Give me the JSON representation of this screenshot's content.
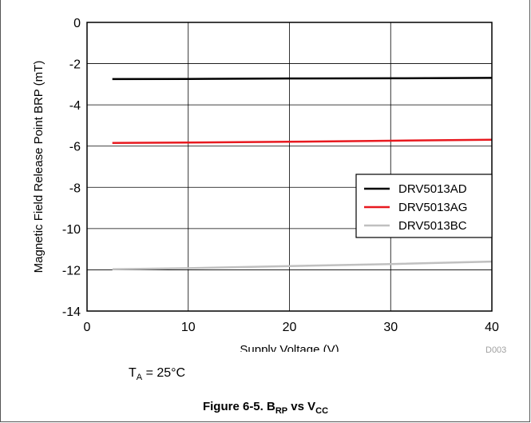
{
  "chart_data": {
    "type": "line",
    "xlabel": "Supply Voltage (V)",
    "ylabel": "Magnetic Field Release Point BRP (mT)",
    "xlim": [
      0,
      40
    ],
    "ylim": [
      -14,
      0
    ],
    "x_ticks": [
      "0",
      "10",
      "20",
      "30",
      "40"
    ],
    "y_ticks": [
      "0",
      "-2",
      "-4",
      "-6",
      "-8",
      "-10",
      "-12",
      "-14"
    ],
    "grid": true,
    "legend_position": "right",
    "series": [
      {
        "name": "DRV5013AD",
        "color": "#000000",
        "x": [
          2.5,
          10,
          20,
          30,
          40
        ],
        "y": [
          -2.75,
          -2.74,
          -2.72,
          -2.71,
          -2.69
        ]
      },
      {
        "name": "DRV5013AG",
        "color": "#e8191f",
        "x": [
          2.5,
          10,
          20,
          30,
          40
        ],
        "y": [
          -5.85,
          -5.83,
          -5.79,
          -5.74,
          -5.69
        ]
      },
      {
        "name": "DRV5013BC",
        "color": "#c0c0c0",
        "x": [
          2.5,
          10,
          20,
          30,
          40
        ],
        "y": [
          -11.97,
          -11.92,
          -11.82,
          -11.72,
          -11.6
        ]
      }
    ]
  },
  "figure_code": "D003",
  "condition": {
    "symbol": "T",
    "subscript": "A",
    "text": " = 25°C"
  },
  "caption": {
    "prefix": "Figure 6-5. B",
    "sub1": "RP",
    "middle": " vs V",
    "sub2": "CC"
  }
}
